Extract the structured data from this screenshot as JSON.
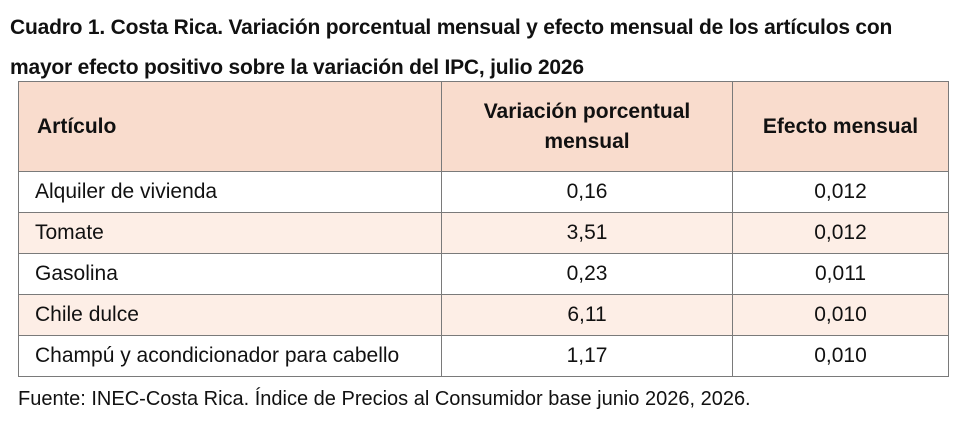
{
  "title": "Cuadro 1. Costa Rica. Variación porcentual mensual y efecto mensual de los artículos con mayor efecto positivo sobre la variación del IPC, julio 2026",
  "table": {
    "headers": {
      "articulo": "Artículo",
      "variacion": "Variación porcentual mensual",
      "efecto": "Efecto mensual"
    },
    "rows": [
      {
        "articulo": "Alquiler de vivienda",
        "variacion": "0,16",
        "efecto": "0,012"
      },
      {
        "articulo": "Tomate",
        "variacion": "3,51",
        "efecto": "0,012"
      },
      {
        "articulo": "Gasolina",
        "variacion": "0,23",
        "efecto": "0,011"
      },
      {
        "articulo": "Chile dulce",
        "variacion": "6,11",
        "efecto": "0,010"
      },
      {
        "articulo": "Champú y acondicionador para cabello",
        "variacion": "1,17",
        "efecto": "0,010"
      }
    ]
  },
  "source": "Fuente: INEC-Costa Rica. Índice de Precios al Consumidor base junio 2026, 2026.",
  "colors": {
    "header_bg": "#f9dccd",
    "stripe_bg": "#fdeee6",
    "border": "#7a7a7a"
  }
}
